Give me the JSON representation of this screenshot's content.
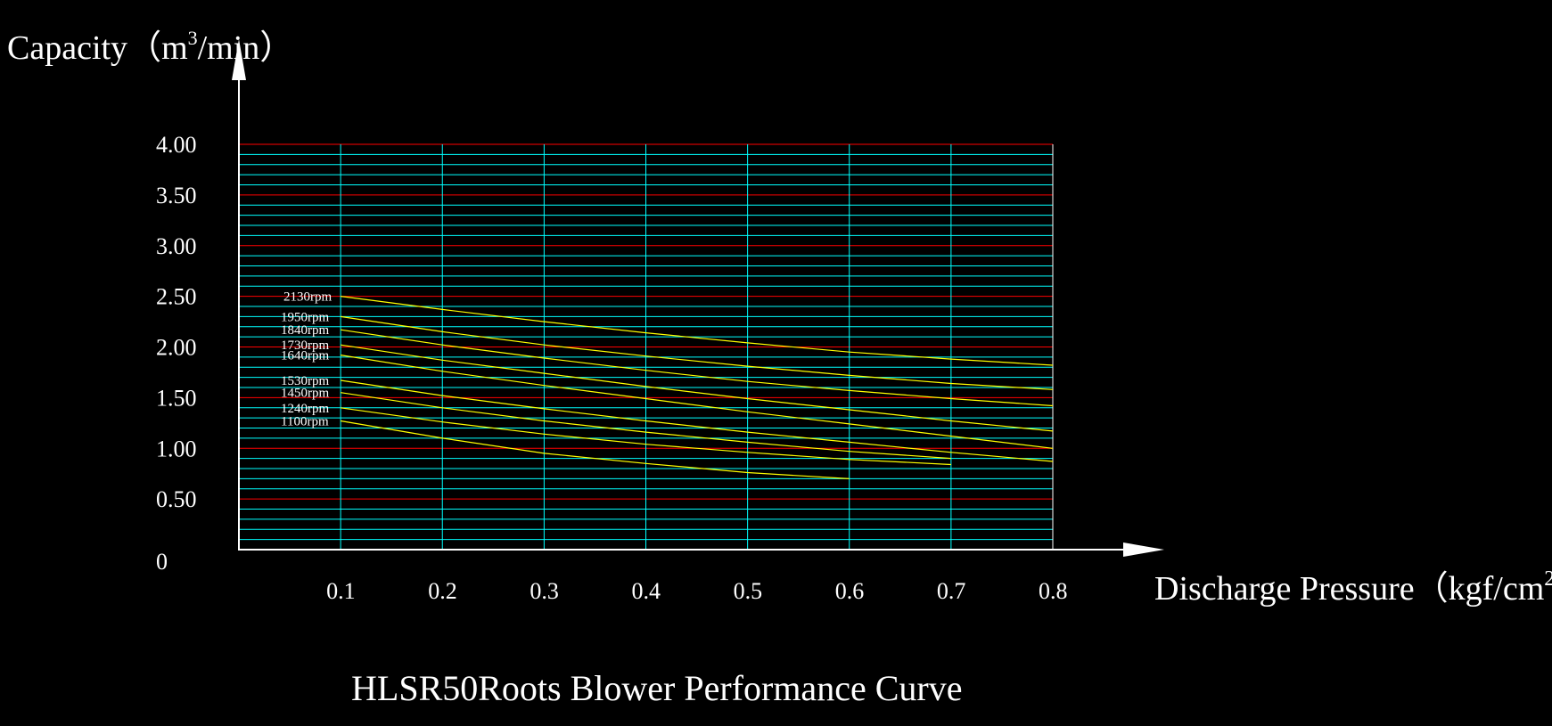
{
  "chart_data": {
    "type": "line",
    "title": "HLSR50Roots Blower Performance Curve",
    "ylabel": "Capacity",
    "ylabel_unit_prefix": "（m",
    "ylabel_unit_sup": "3",
    "ylabel_unit_suffix": "/min）",
    "xlabel": "Discharge Pressure",
    "xlabel_unit_prefix": "（kgf/cm",
    "xlabel_unit_sup": "2",
    "xlabel_unit_suffix": "）",
    "xlim": [
      0,
      0.8
    ],
    "ylim": [
      0,
      4.0
    ],
    "x_ticks": [
      0.1,
      0.2,
      0.3,
      0.4,
      0.5,
      0.6,
      0.7,
      0.8
    ],
    "x_tick_labels": [
      "0.1",
      "0.2",
      "0.3",
      "0.4",
      "0.5",
      "0.6",
      "0.7",
      "0.8"
    ],
    "y_ticks": [
      0,
      0.5,
      1.0,
      1.5,
      2.0,
      2.5,
      3.0,
      3.5,
      4.0
    ],
    "y_tick_labels": [
      "0",
      "0.50",
      "1.00",
      "1.50",
      "2.00",
      "2.50",
      "3.00",
      "3.50",
      "4.00"
    ],
    "grid": true,
    "series": [
      {
        "name": "2130rpm",
        "x": [
          0.1,
          0.2,
          0.3,
          0.4,
          0.5,
          0.6,
          0.7,
          0.8
        ],
        "y": [
          2.5,
          2.37,
          2.25,
          2.14,
          2.04,
          1.95,
          1.88,
          1.82
        ]
      },
      {
        "name": "1950rpm",
        "x": [
          0.1,
          0.2,
          0.3,
          0.4,
          0.5,
          0.6,
          0.7,
          0.8
        ],
        "y": [
          2.3,
          2.15,
          2.02,
          1.91,
          1.81,
          1.72,
          1.64,
          1.58
        ]
      },
      {
        "name": "1840rpm",
        "x": [
          0.1,
          0.2,
          0.3,
          0.4,
          0.5,
          0.6,
          0.7,
          0.8
        ],
        "y": [
          2.17,
          2.02,
          1.89,
          1.77,
          1.66,
          1.57,
          1.49,
          1.42
        ]
      },
      {
        "name": "1730rpm",
        "x": [
          0.1,
          0.2,
          0.3,
          0.4,
          0.5,
          0.6,
          0.7,
          0.8
        ],
        "y": [
          2.02,
          1.87,
          1.74,
          1.61,
          1.49,
          1.38,
          1.27,
          1.17
        ]
      },
      {
        "name": "1640rpm",
        "x": [
          0.1,
          0.2,
          0.3,
          0.4,
          0.5,
          0.6,
          0.7,
          0.8
        ],
        "y": [
          1.92,
          1.76,
          1.62,
          1.49,
          1.36,
          1.24,
          1.12,
          1.0
        ]
      },
      {
        "name": "1530rpm",
        "x": [
          0.1,
          0.2,
          0.3,
          0.4,
          0.5,
          0.6,
          0.7,
          0.8
        ],
        "y": [
          1.67,
          1.52,
          1.39,
          1.27,
          1.16,
          1.06,
          0.96,
          0.87
        ]
      },
      {
        "name": "1450rpm",
        "x": [
          0.1,
          0.2,
          0.3,
          0.4,
          0.5,
          0.6,
          0.7
        ],
        "y": [
          1.55,
          1.4,
          1.27,
          1.16,
          1.06,
          0.97,
          0.9
        ]
      },
      {
        "name": "1240rpm",
        "x": [
          0.1,
          0.2,
          0.3,
          0.4,
          0.5,
          0.6,
          0.7
        ],
        "y": [
          1.4,
          1.26,
          1.14,
          1.04,
          0.96,
          0.89,
          0.84
        ]
      },
      {
        "name": "1100rpm",
        "x": [
          0.1,
          0.2,
          0.3,
          0.4,
          0.5,
          0.6
        ],
        "y": [
          1.27,
          1.1,
          0.95,
          0.85,
          0.76,
          0.7
        ]
      }
    ],
    "colors": {
      "background": "#000000",
      "major_grid": "#ff0000",
      "minor_grid": "#00ffff",
      "curve": "#ffff00",
      "axis": "#ffffff",
      "text": "#ffffff"
    }
  }
}
